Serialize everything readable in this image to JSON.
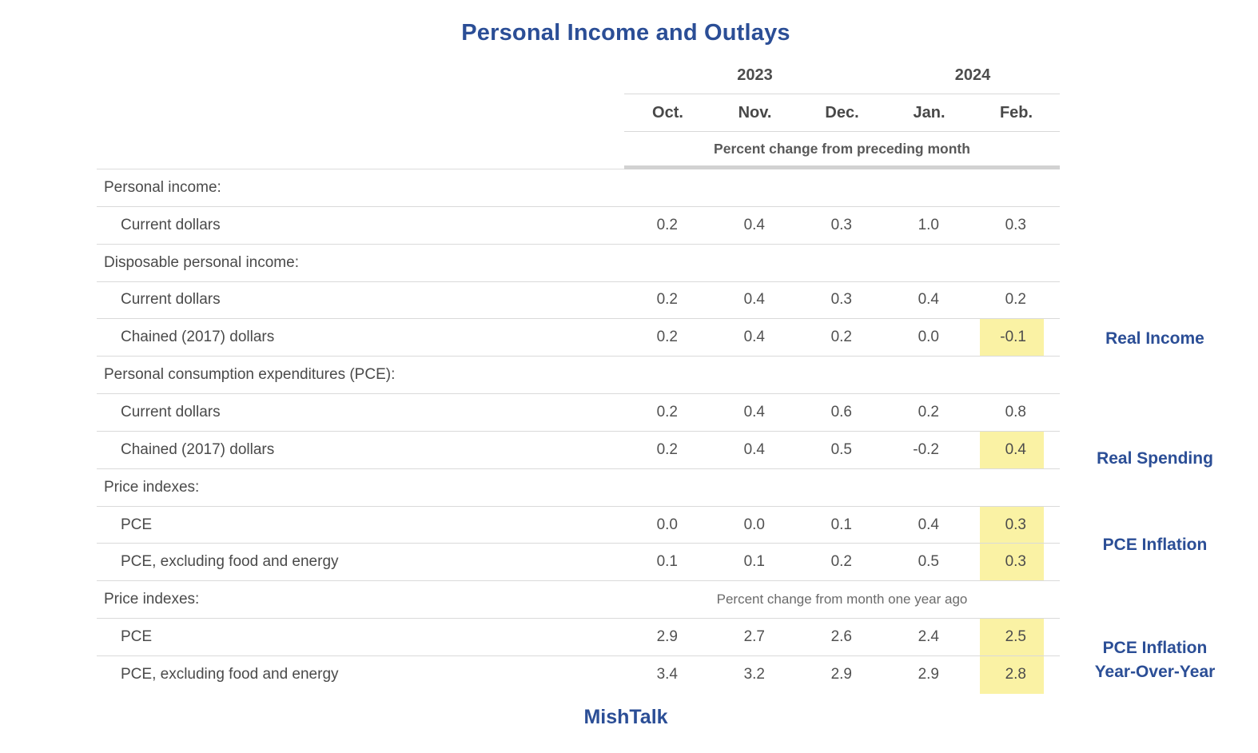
{
  "title": "Personal Income and Outlays",
  "header": {
    "years": [
      {
        "label": "2023",
        "columns_spanned": 3
      },
      {
        "label": "2024",
        "columns_spanned": 2
      }
    ],
    "months": [
      "Oct.",
      "Nov.",
      "Dec.",
      "Jan.",
      "Feb."
    ],
    "unit_note": "Percent change from preceding month"
  },
  "rows": [
    {
      "label": "Personal income:",
      "type": "section"
    },
    {
      "label": "Current dollars",
      "type": "item",
      "values": [
        "0.2",
        "0.4",
        "0.3",
        "1.0",
        "0.3"
      ]
    },
    {
      "label": "Disposable personal income:",
      "type": "section"
    },
    {
      "label": "Current dollars",
      "type": "item",
      "values": [
        "0.2",
        "0.4",
        "0.3",
        "0.4",
        "0.2"
      ]
    },
    {
      "label": "Chained (2017) dollars",
      "type": "item",
      "values": [
        "0.2",
        "0.4",
        "0.2",
        "0.0",
        "-0.1"
      ],
      "highlight_last": true
    },
    {
      "label": "Personal consumption expenditures (PCE):",
      "type": "section"
    },
    {
      "label": "Current dollars",
      "type": "item",
      "values": [
        "0.2",
        "0.4",
        "0.6",
        "0.2",
        "0.8"
      ]
    },
    {
      "label": "Chained (2017) dollars",
      "type": "item",
      "values": [
        "0.2",
        "0.4",
        "0.5",
        "-0.2",
        "0.4"
      ],
      "highlight_last": true
    },
    {
      "label": "Price indexes:",
      "type": "section"
    },
    {
      "label": "PCE",
      "type": "item",
      "values": [
        "0.0",
        "0.0",
        "0.1",
        "0.4",
        "0.3"
      ],
      "highlight_last": true
    },
    {
      "label": "PCE, excluding food and energy",
      "type": "item",
      "values": [
        "0.1",
        "0.1",
        "0.2",
        "0.5",
        "0.3"
      ],
      "highlight_last": true
    },
    {
      "label": "Price indexes:",
      "type": "section",
      "note": "Percent change from month one year ago"
    },
    {
      "label": "PCE",
      "type": "item",
      "values": [
        "2.9",
        "2.7",
        "2.6",
        "2.4",
        "2.5"
      ],
      "highlight_last": true
    },
    {
      "label": "PCE, excluding food and energy",
      "type": "item",
      "values": [
        "3.4",
        "3.2",
        "2.9",
        "2.9",
        "2.8"
      ],
      "highlight_last": true
    }
  ],
  "annotations": [
    {
      "text": "Real Income"
    },
    {
      "text": "Real Spending"
    },
    {
      "text": "PCE Inflation"
    },
    {
      "line1": "PCE Inflation",
      "line2": "Year-Over-Year"
    }
  ],
  "footer": "MishTalk",
  "colors": {
    "accent_blue": "#2b4e96",
    "highlight_yellow": "#faf2a4",
    "grid_line": "#dadada",
    "thick_rule": "#d2d2d2",
    "text_gray": "#4a4a4a"
  },
  "chart_data": {
    "type": "table",
    "title": "Personal Income and Outlays",
    "columns": [
      "Oct. 2023",
      "Nov. 2023",
      "Dec. 2023",
      "Jan. 2024",
      "Feb. 2024"
    ],
    "rows": [
      {
        "section": "Personal income:",
        "label": "Current dollars",
        "unit": "Percent change from preceding month",
        "values": [
          0.2,
          0.4,
          0.3,
          1.0,
          0.3
        ]
      },
      {
        "section": "Disposable personal income:",
        "label": "Current dollars",
        "unit": "Percent change from preceding month",
        "values": [
          0.2,
          0.4,
          0.3,
          0.4,
          0.2
        ]
      },
      {
        "section": "Disposable personal income:",
        "label": "Chained (2017) dollars",
        "unit": "Percent change from preceding month",
        "values": [
          0.2,
          0.4,
          0.2,
          0.0,
          -0.1
        ],
        "highlighted_column": "Feb. 2024",
        "annotation": "Real Income"
      },
      {
        "section": "Personal consumption expenditures (PCE):",
        "label": "Current dollars",
        "unit": "Percent change from preceding month",
        "values": [
          0.2,
          0.4,
          0.6,
          0.2,
          0.8
        ]
      },
      {
        "section": "Personal consumption expenditures (PCE):",
        "label": "Chained (2017) dollars",
        "unit": "Percent change from preceding month",
        "values": [
          0.2,
          0.4,
          0.5,
          -0.2,
          0.4
        ],
        "highlighted_column": "Feb. 2024",
        "annotation": "Real Spending"
      },
      {
        "section": "Price indexes:",
        "label": "PCE",
        "unit": "Percent change from preceding month",
        "values": [
          0.0,
          0.0,
          0.1,
          0.4,
          0.3
        ],
        "highlighted_column": "Feb. 2024",
        "annotation": "PCE Inflation"
      },
      {
        "section": "Price indexes:",
        "label": "PCE, excluding food and energy",
        "unit": "Percent change from preceding month",
        "values": [
          0.1,
          0.1,
          0.2,
          0.5,
          0.3
        ],
        "highlighted_column": "Feb. 2024",
        "annotation": "PCE Inflation"
      },
      {
        "section": "Price indexes:",
        "label": "PCE",
        "unit": "Percent change from month one year ago",
        "values": [
          2.9,
          2.7,
          2.6,
          2.4,
          2.5
        ],
        "highlighted_column": "Feb. 2024",
        "annotation": "PCE Inflation Year-Over-Year"
      },
      {
        "section": "Price indexes:",
        "label": "PCE, excluding food and energy",
        "unit": "Percent change from month one year ago",
        "values": [
          3.4,
          3.2,
          2.9,
          2.9,
          2.8
        ],
        "highlighted_column": "Feb. 2024",
        "annotation": "PCE Inflation Year-Over-Year"
      }
    ],
    "source_label": "MishTalk",
    "legend_position": "none",
    "grid": "horizontal-rules"
  }
}
